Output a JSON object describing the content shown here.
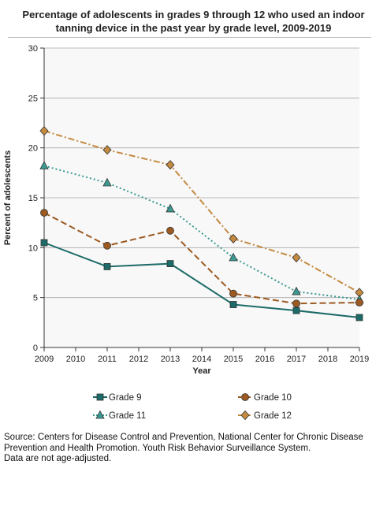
{
  "chart_data": {
    "type": "line",
    "title": "Percentage of adolescents in grades 9 through 12 who used an indoor tanning device in the past year by grade level, 2009-2019",
    "xlabel": "Year",
    "ylabel": "Percent of adolescents",
    "x_ticks": [
      2009,
      2010,
      2011,
      2012,
      2013,
      2014,
      2015,
      2016,
      2017,
      2018,
      2019
    ],
    "y_ticks": [
      0,
      5,
      10,
      15,
      20,
      25,
      30
    ],
    "xlim": [
      2009,
      2019
    ],
    "ylim": [
      0,
      30
    ],
    "grid": "horizontal",
    "legend_position": "bottom",
    "x": [
      2009,
      2011,
      2013,
      2015,
      2017,
      2019
    ],
    "series": [
      {
        "name": "Grade 9",
        "values": [
          10.5,
          8.1,
          8.4,
          4.3,
          3.7,
          3.0
        ],
        "color": "#1c6b68",
        "marker": "square",
        "line_style": "solid"
      },
      {
        "name": "Grade 10",
        "values": [
          13.5,
          10.2,
          11.7,
          5.4,
          4.4,
          4.5
        ],
        "color": "#9c5a21",
        "marker": "circle",
        "line_style": "dashed"
      },
      {
        "name": "Grade 11",
        "values": [
          18.2,
          16.5,
          13.9,
          9.0,
          5.6,
          4.8
        ],
        "color": "#3c9a92",
        "marker": "triangle",
        "line_style": "dotted"
      },
      {
        "name": "Grade 12",
        "values": [
          21.7,
          19.8,
          18.3,
          10.9,
          9.0,
          5.5
        ],
        "color": "#c48a40",
        "marker": "diamond",
        "line_style": "dashdot"
      }
    ]
  },
  "source_lines": [
    "Source: Centers for Disease Control and Prevention, National Center for Chronic Disease",
    "Prevention and Health Promotion. Youth Risk Behavior Surveillance System.",
    "Data are not age-adjusted."
  ]
}
